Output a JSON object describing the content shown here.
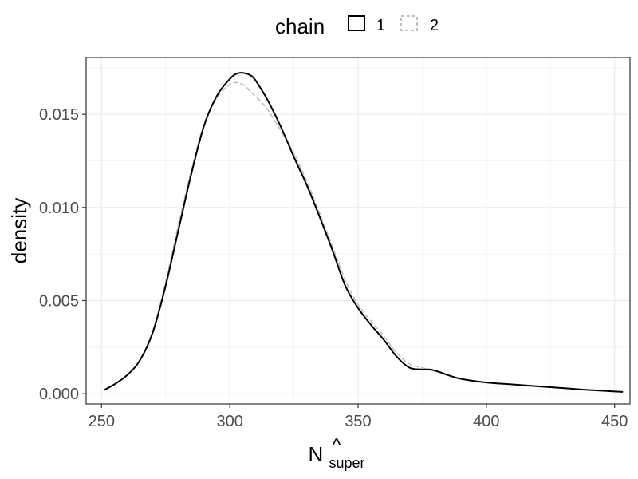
{
  "chart_data": {
    "type": "line",
    "title": "",
    "xlabel": "N",
    "xlabel_hat": "^",
    "xlabel_subscript": "super",
    "ylabel": "density",
    "xlim": [
      244,
      456
    ],
    "ylim": [
      -0.00055,
      0.01805
    ],
    "x_ticks": [
      250,
      300,
      350,
      400,
      450
    ],
    "x_tick_labels": [
      "250",
      "300",
      "350",
      "400",
      "450"
    ],
    "y_ticks": [
      0.0,
      0.005,
      0.01,
      0.015
    ],
    "y_tick_labels": [
      "0.000",
      "0.005",
      "0.010",
      "0.015"
    ],
    "grid": true,
    "theme": "bw",
    "legend": {
      "title": "chain",
      "position": "top",
      "entries": [
        "1",
        "2"
      ]
    },
    "series": [
      {
        "name": "1",
        "color": "#000000",
        "linestyle": "solid",
        "x": [
          251,
          255,
          260,
          265,
          270,
          275,
          280,
          285,
          290,
          295,
          300,
          303,
          306,
          309,
          312,
          315,
          320,
          325,
          330,
          335,
          340,
          345,
          350,
          355,
          360,
          365,
          370,
          375,
          378,
          381,
          385,
          390,
          400,
          410,
          420,
          430,
          440,
          453
        ],
        "y": [
          0.0002,
          0.0005,
          0.001,
          0.0018,
          0.0033,
          0.0058,
          0.0088,
          0.0118,
          0.0144,
          0.016,
          0.0169,
          0.0172,
          0.0172,
          0.017,
          0.0164,
          0.0157,
          0.0143,
          0.0127,
          0.0112,
          0.0095,
          0.0077,
          0.0058,
          0.0046,
          0.0037,
          0.0029,
          0.002,
          0.0014,
          0.0013,
          0.0013,
          0.0012,
          0.001,
          0.0008,
          0.0006,
          0.0005,
          0.0004,
          0.0003,
          0.0002,
          0.0001
        ]
      },
      {
        "name": "2",
        "color": "#bfbfbf",
        "linestyle": "dashed",
        "x": [
          251,
          255,
          260,
          265,
          270,
          275,
          280,
          285,
          290,
          295,
          300,
          303,
          306,
          309,
          312,
          315,
          320,
          325,
          330,
          335,
          340,
          345,
          350,
          355,
          360,
          365,
          370,
          375,
          380,
          385,
          390,
          400,
          410,
          420,
          430,
          440,
          453
        ],
        "y": [
          0.0002,
          0.0005,
          0.001,
          0.0018,
          0.0034,
          0.006,
          0.0091,
          0.012,
          0.0145,
          0.0159,
          0.0166,
          0.0167,
          0.0165,
          0.0161,
          0.0157,
          0.0152,
          0.0141,
          0.0129,
          0.0114,
          0.0097,
          0.0079,
          0.0061,
          0.0048,
          0.0039,
          0.0031,
          0.0022,
          0.0016,
          0.0014,
          0.0012,
          0.001,
          0.0008,
          0.0006,
          0.0005,
          0.0004,
          0.0003,
          0.0002,
          0.0001
        ]
      }
    ]
  }
}
